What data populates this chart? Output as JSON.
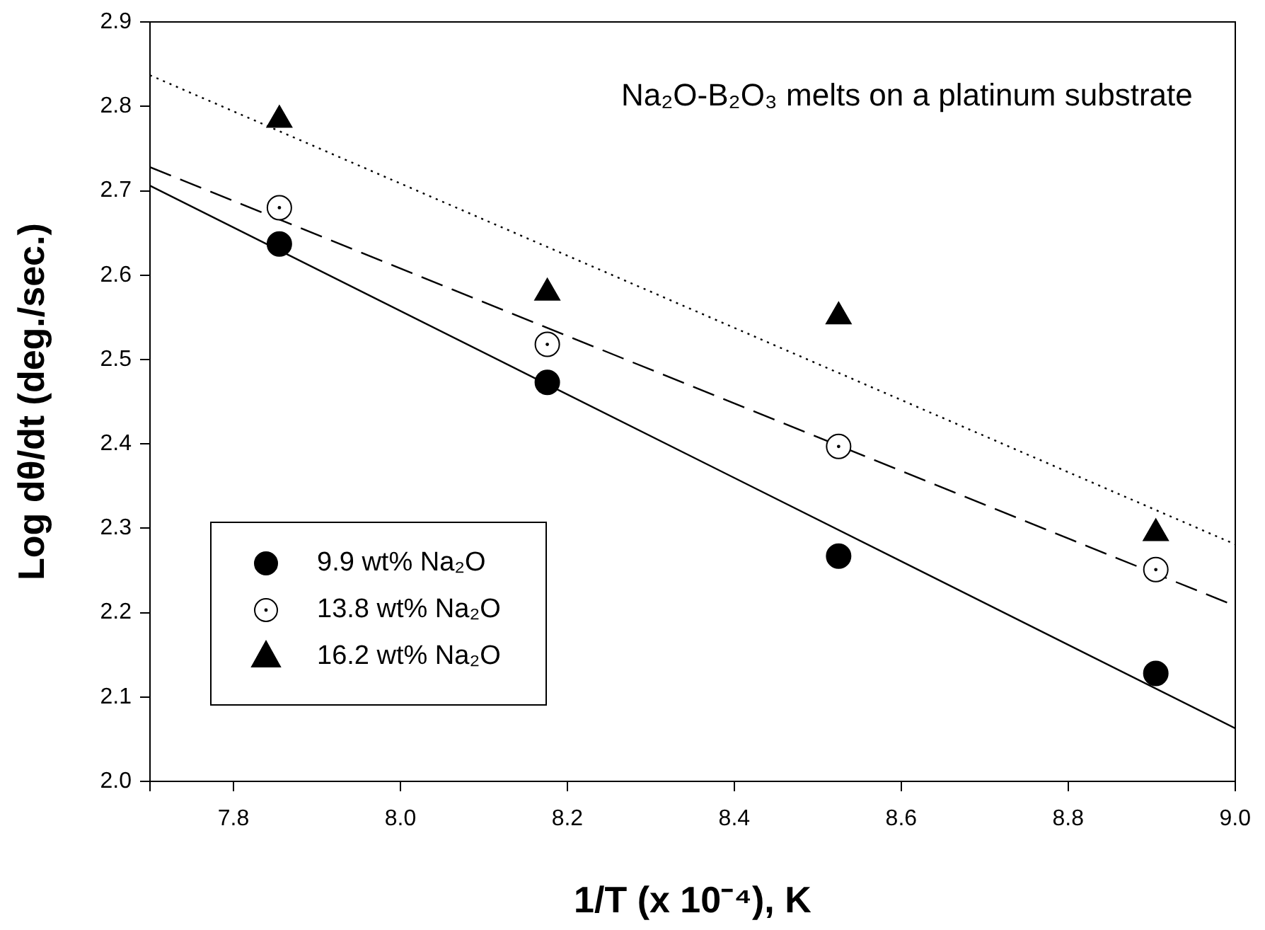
{
  "chart_data": {
    "type": "scatter",
    "xlabel": "1/T (x 10⁻⁴), K",
    "ylabel": "Log dθ/dt (deg./sec.)",
    "annotations": [
      "Na₂O-B₂O₃ melts on a platinum substrate"
    ],
    "xlim": [
      7.7,
      9.0
    ],
    "xticks": [
      {
        "value": 7.7,
        "label": null
      },
      7.8,
      {
        "value": 8,
        "label": "8.0"
      },
      8.2,
      8.4,
      8.6,
      8.8,
      {
        "value": 9,
        "label": "9.0"
      }
    ],
    "ylim": [
      2.0,
      2.9
    ],
    "yticks": [
      {
        "value": 2,
        "label": "2.0"
      },
      2.1,
      2.2,
      2.3,
      2.4,
      2.5,
      2.6,
      2.7,
      2.8,
      2.9
    ],
    "grid": false,
    "legend": "bottom left",
    "series": [
      {
        "name": "9.9 wt% Na₂O",
        "color": "#000000",
        "marker": "circle",
        "x": [
          7.855,
          8.176,
          8.525,
          8.905
        ],
        "values": [
          2.637,
          2.473,
          2.267,
          2.128
        ]
      },
      {
        "name": "13.8 wt% Na₂O",
        "color": "#ffffff",
        "marker": "circle",
        "x": [
          7.855,
          8.176,
          8.525,
          8.905
        ],
        "values": [
          2.68,
          2.518,
          2.397,
          2.251
        ]
      },
      {
        "name": "16.2 wt% Na₂O",
        "color": "#000000",
        "marker": "triangle",
        "x": [
          7.855,
          8.176,
          8.525,
          8.905
        ],
        "values": [
          2.784,
          2.579,
          2.551,
          2.294
        ]
      },
      {
        "type": "line",
        "color": "#000000",
        "line_style": "solid",
        "marker": "none",
        "x": [
          7.7,
          9.0
        ],
        "values": [
          2.706,
          2.063
        ]
      },
      {
        "type": "line",
        "color": "#000000",
        "line_style": "dashed",
        "marker": "none",
        "x": [
          7.7,
          9.0
        ],
        "values": [
          2.728,
          2.208
        ]
      },
      {
        "type": "line",
        "color": "#000000",
        "line_style": "dotted",
        "marker": "none",
        "x": [
          7.7,
          9.0
        ],
        "values": [
          2.837,
          2.281
        ]
      }
    ]
  }
}
